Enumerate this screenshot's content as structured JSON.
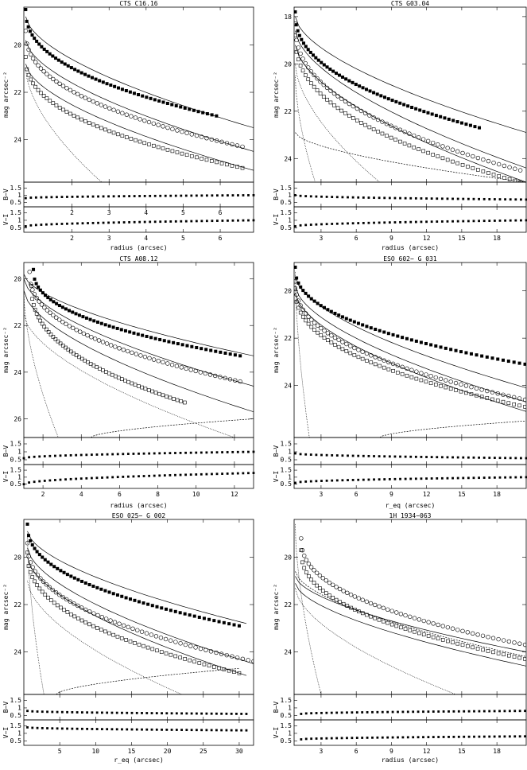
{
  "figure": {
    "panels": [
      {
        "title": "CTS C16.16",
        "xlabel": "radius (arcsec)",
        "xlim": [
          0.7,
          6.9
        ],
        "xticks": [
          2,
          3,
          4,
          5,
          6
        ],
        "color_xticks": [
          2,
          3,
          4,
          5,
          6
        ],
        "ylabel": "mag arcsec⁻²",
        "ylim": [
          25.8,
          18.4
        ],
        "yticks": [
          20,
          22,
          24
        ],
        "bv_label": "B−V",
        "vi_label": "V−I",
        "color_yticks": [
          "1.5",
          "1",
          "0.5"
        ]
      },
      {
        "title": "CTS G03.04",
        "xlabel": "radius (arcsec)",
        "xlim": [
          0.7,
          20.5
        ],
        "xticks": [
          3,
          6,
          9,
          12,
          15,
          18
        ],
        "color_xticks": [],
        "ylabel": "mag arcsec⁻²",
        "ylim": [
          25.0,
          17.6
        ],
        "yticks": [
          18,
          20,
          22,
          24
        ],
        "bv_label": "B−V",
        "vi_label": "V−I",
        "color_yticks": [
          "1.5",
          "1",
          "0.5"
        ]
      },
      {
        "title": "CTS A08.12",
        "xlabel": "radius (arcsec)",
        "xlim": [
          1.0,
          13.0
        ],
        "xticks": [
          2,
          4,
          6,
          8,
          10,
          12
        ],
        "color_xticks": [],
        "ylabel": "mag arcsec⁻²",
        "ylim": [
          26.8,
          19.3
        ],
        "yticks": [
          20,
          22,
          24,
          26
        ],
        "bv_label": "B−V",
        "vi_label": "V−I",
        "color_yticks": [
          "1.5",
          "1",
          "0.5"
        ]
      },
      {
        "title": "ESO 602− G 031",
        "xlabel": "r_eq (arcsec)",
        "xlim": [
          0.7,
          20.5
        ],
        "xticks": [
          3,
          6,
          9,
          12,
          15,
          18
        ],
        "color_xticks": [],
        "ylabel": "mag arcsec⁻²",
        "ylim": [
          26.2,
          18.8
        ],
        "yticks": [
          20,
          22,
          24
        ],
        "bv_label": "B−V",
        "vi_label": "V−I",
        "color_yticks": [
          "1.5",
          "1",
          "0.5"
        ]
      },
      {
        "title": "ESO 025− G 002",
        "xlabel": "r_eq (arcsec)",
        "xlim": [
          0,
          32
        ],
        "xticks": [
          5,
          10,
          15,
          20,
          25,
          30
        ],
        "color_xticks": [],
        "ylabel": "mag arcsec⁻²",
        "ylim": [
          25.8,
          18.4
        ],
        "yticks": [
          20,
          22,
          24
        ],
        "bv_label": "B−V",
        "vi_label": "V−I",
        "color_yticks": [
          "1.5",
          "1",
          "0.5"
        ]
      },
      {
        "title": "1H 1934−063",
        "xlabel": "radius (arcsec)",
        "xlim": [
          0.7,
          20.5
        ],
        "xticks": [
          3,
          6,
          9,
          12,
          15,
          18
        ],
        "color_xticks": [],
        "ylabel": "mag arcsec⁻²",
        "ylim": [
          25.8,
          18.4
        ],
        "yticks": [
          20,
          22,
          24
        ],
        "bv_label": "B−V",
        "vi_label": "V−I",
        "color_yticks": [
          "1.5",
          "1",
          "0.5"
        ]
      }
    ]
  },
  "chart_data": [
    {
      "type": "scatter",
      "title": "CTS C16.16",
      "xlabel": "radius (arcsec)",
      "ylabel": "mag arcsec⁻²",
      "xlim": [
        0.7,
        6.9
      ],
      "ylim": [
        25.8,
        18.4
      ],
      "profiles": [
        {
          "marker": "filled-square",
          "r0": 0.75,
          "r1": 5.9,
          "m0": 18.5,
          "m1": 23.0
        },
        {
          "marker": "open-circle",
          "r0": 0.75,
          "r1": 6.6,
          "m0": 19.4,
          "m1": 24.3
        },
        {
          "marker": "open-square",
          "r0": 0.75,
          "r1": 6.6,
          "m0": 20.5,
          "m1": 25.2
        }
      ],
      "fits": [
        {
          "style": "solid",
          "r0": 0.75,
          "r1": 6.9,
          "m0": 18.8,
          "m1": 23.5
        },
        {
          "style": "solid",
          "r0": 0.75,
          "r1": 6.9,
          "m0": 19.8,
          "m1": 24.5
        },
        {
          "style": "solid",
          "r0": 0.75,
          "r1": 6.9,
          "m0": 20.8,
          "m1": 25.3
        },
        {
          "style": "dotted",
          "r0": 0.75,
          "r1": 2.8,
          "m0": 21.0,
          "m1": 25.8
        }
      ],
      "bv": {
        "x0": 0.75,
        "x1": 6.9,
        "y0": 0.8,
        "y1": 1.0
      },
      "vi": {
        "x0": 0.75,
        "x1": 6.9,
        "y0": 0.6,
        "y1": 1.0
      }
    },
    {
      "type": "scatter",
      "title": "CTS G03.04",
      "xlabel": "radius (arcsec)",
      "ylabel": "mag arcsec⁻²",
      "xlim": [
        0.7,
        20.5
      ],
      "ylim": [
        25.0,
        17.6
      ],
      "profiles": [
        {
          "marker": "filled-square",
          "r0": 0.8,
          "r1": 16.5,
          "m0": 17.8,
          "m1": 22.7
        },
        {
          "marker": "open-circle",
          "r0": 0.8,
          "r1": 20.0,
          "m0": 18.3,
          "m1": 24.5
        },
        {
          "marker": "open-square",
          "r0": 0.8,
          "r1": 20.0,
          "m0": 18.8,
          "m1": 25.0
        }
      ],
      "fits": [
        {
          "style": "solid",
          "r0": 0.8,
          "r1": 20.5,
          "m0": 18.0,
          "m1": 22.9
        },
        {
          "style": "solid",
          "r0": 0.8,
          "r1": 20.5,
          "m0": 18.6,
          "m1": 24.4
        },
        {
          "style": "solid",
          "r0": 0.8,
          "r1": 20.5,
          "m0": 19.2,
          "m1": 25.0
        },
        {
          "style": "dashed",
          "r0": 0.8,
          "r1": 20.5,
          "m0": 22.9,
          "m1": 25.0
        },
        {
          "style": "dotted",
          "r0": 0.8,
          "r1": 8.0,
          "m0": 20.0,
          "m1": 25.0
        },
        {
          "style": "dotted",
          "r0": 0.8,
          "r1": 2.5,
          "m0": 20.5,
          "m1": 25.0
        }
      ],
      "bv": {
        "x0": 0.8,
        "x1": 20.5,
        "y0": 1.0,
        "y1": 0.7
      },
      "vi": {
        "x0": 0.8,
        "x1": 20.5,
        "y0": 0.6,
        "y1": 1.0
      }
    },
    {
      "type": "scatter",
      "title": "CTS A08.12",
      "xlabel": "radius (arcsec)",
      "ylabel": "mag arcsec⁻²",
      "xlim": [
        1.0,
        13.0
      ],
      "ylim": [
        26.8,
        19.3
      ],
      "profiles": [
        {
          "marker": "filled-square",
          "r0": 1.5,
          "r1": 12.3,
          "m0": 19.6,
          "m1": 23.3
        },
        {
          "marker": "open-circle",
          "r0": 1.3,
          "r1": 12.3,
          "m0": 19.7,
          "m1": 24.4
        },
        {
          "marker": "open-square",
          "r0": 1.4,
          "r1": 9.4,
          "m0": 20.3,
          "m1": 25.3
        }
      ],
      "fits": [
        {
          "style": "solid",
          "r0": 1.0,
          "r1": 13.0,
          "m0": 19.8,
          "m1": 23.3
        },
        {
          "style": "solid",
          "r0": 1.0,
          "r1": 13.0,
          "m0": 20.0,
          "m1": 24.6
        },
        {
          "style": "solid",
          "r0": 1.0,
          "r1": 13.0,
          "m0": 20.5,
          "m1": 25.7
        },
        {
          "style": "dotted",
          "r0": 1.0,
          "r1": 2.8,
          "m0": 20.6,
          "m1": 26.8
        },
        {
          "style": "dotted",
          "r0": 1.0,
          "r1": 12.0,
          "m0": 21.5,
          "m1": 26.8
        },
        {
          "style": "dashed",
          "r0": 4.5,
          "r1": 13.0,
          "m0": 26.8,
          "m1": 26.0
        }
      ],
      "bv": {
        "x0": 1.0,
        "x1": 13.0,
        "y0": 0.6,
        "y1": 1.0
      },
      "vi": {
        "x0": 1.0,
        "x1": 13.0,
        "y0": 0.5,
        "y1": 1.3
      }
    },
    {
      "type": "scatter",
      "title": "ESO 602− G 031",
      "xlabel": "r_eq (arcsec)",
      "ylabel": "mag arcsec⁻²",
      "xlim": [
        0.7,
        20.5
      ],
      "ylim": [
        26.2,
        18.8
      ],
      "profiles": [
        {
          "marker": "filled-square",
          "r0": 0.8,
          "r1": 20.4,
          "m0": 19.0,
          "m1": 23.1
        },
        {
          "marker": "open-circle",
          "r0": 0.8,
          "r1": 20.4,
          "m0": 19.6,
          "m1": 24.6
        },
        {
          "marker": "open-square",
          "r0": 0.8,
          "r1": 20.4,
          "m0": 19.9,
          "m1": 24.9
        }
      ],
      "fits": [
        {
          "style": "solid",
          "r0": 0.8,
          "r1": 20.5,
          "m0": 19.4,
          "m1": 24.1
        },
        {
          "style": "solid",
          "r0": 0.8,
          "r1": 20.5,
          "m0": 19.8,
          "m1": 24.7
        },
        {
          "style": "solid",
          "r0": 0.8,
          "r1": 20.5,
          "m0": 20.1,
          "m1": 25.1
        },
        {
          "style": "dotted",
          "r0": 0.8,
          "r1": 2.0,
          "m0": 19.2,
          "m1": 26.2
        },
        {
          "style": "dashed",
          "r0": 8.0,
          "r1": 20.5,
          "m0": 26.2,
          "m1": 25.5
        }
      ],
      "bv": {
        "x0": 0.8,
        "x1": 20.5,
        "y0": 0.9,
        "y1": 0.6
      },
      "vi": {
        "x0": 0.8,
        "x1": 20.5,
        "y0": 0.6,
        "y1": 1.0
      }
    },
    {
      "type": "scatter",
      "title": "ESO 025− G 002",
      "xlabel": "r_eq (arcsec)",
      "ylabel": "mag arcsec⁻²",
      "xlim": [
        0,
        32
      ],
      "ylim": [
        25.8,
        18.4
      ],
      "profiles": [
        {
          "marker": "filled-square",
          "r0": 0.5,
          "r1": 30.0,
          "m0": 18.6,
          "m1": 22.9
        },
        {
          "marker": "open-circle",
          "r0": 0.5,
          "r1": 32.0,
          "m0": 19.4,
          "m1": 24.4
        },
        {
          "marker": "open-square",
          "r0": 0.5,
          "r1": 30.0,
          "m0": 19.8,
          "m1": 24.9
        }
      ],
      "fits": [
        {
          "style": "solid",
          "r0": 0.5,
          "r1": 31.0,
          "m0": 18.9,
          "m1": 22.8
        },
        {
          "style": "solid",
          "r0": 0.5,
          "r1": 32.0,
          "m0": 19.6,
          "m1": 24.5
        },
        {
          "style": "solid",
          "r0": 0.5,
          "r1": 31.0,
          "m0": 20.0,
          "m1": 25.0
        },
        {
          "style": "dotted",
          "r0": 0.5,
          "r1": 2.8,
          "m0": 19.0,
          "m1": 25.8
        },
        {
          "style": "dotted",
          "r0": 0.5,
          "r1": 22.0,
          "m0": 21.0,
          "m1": 25.8
        },
        {
          "style": "dashed",
          "r0": 4.5,
          "r1": 30.0,
          "m0": 25.8,
          "m1": 24.7
        }
      ],
      "bv": {
        "x0": 0.5,
        "x1": 31.0,
        "y0": 0.8,
        "y1": 0.6
      },
      "vi": {
        "x0": 0.5,
        "x1": 31.0,
        "y0": 1.4,
        "y1": 1.2
      }
    },
    {
      "type": "scatter",
      "title": "1H 1934−063",
      "xlabel": "radius (arcsec)",
      "ylabel": "mag arcsec⁻²",
      "xlim": [
        0.7,
        20.5
      ],
      "ylim": [
        25.8,
        18.4
      ],
      "profiles": [
        {
          "marker": "open-circle",
          "r0": 1.3,
          "r1": 20.4,
          "m0": 19.2,
          "m1": 23.7
        },
        {
          "marker": "open-square",
          "r0": 1.3,
          "r1": 20.4,
          "m0": 19.7,
          "m1": 24.3
        }
      ],
      "fits": [
        {
          "style": "solid",
          "r0": 0.8,
          "r1": 20.5,
          "m0": 20.8,
          "m1": 24.0
        },
        {
          "style": "solid",
          "r0": 0.8,
          "r1": 20.5,
          "m0": 21.1,
          "m1": 24.6
        },
        {
          "style": "dashed",
          "r0": 0.8,
          "r1": 20.5,
          "m0": 20.6,
          "m1": 24.2
        },
        {
          "style": "dotted",
          "r0": 0.8,
          "r1": 3.0,
          "m0": 18.6,
          "m1": 25.8
        },
        {
          "style": "dotted",
          "r0": 0.8,
          "r1": 14.5,
          "m0": 21.3,
          "m1": 25.8
        }
      ],
      "bv": {
        "x0": 1.3,
        "x1": 20.4,
        "y0": 0.6,
        "y1": 0.8
      },
      "vi": {
        "x0": 1.3,
        "x1": 20.4,
        "y0": 0.6,
        "y1": 0.8
      }
    }
  ]
}
